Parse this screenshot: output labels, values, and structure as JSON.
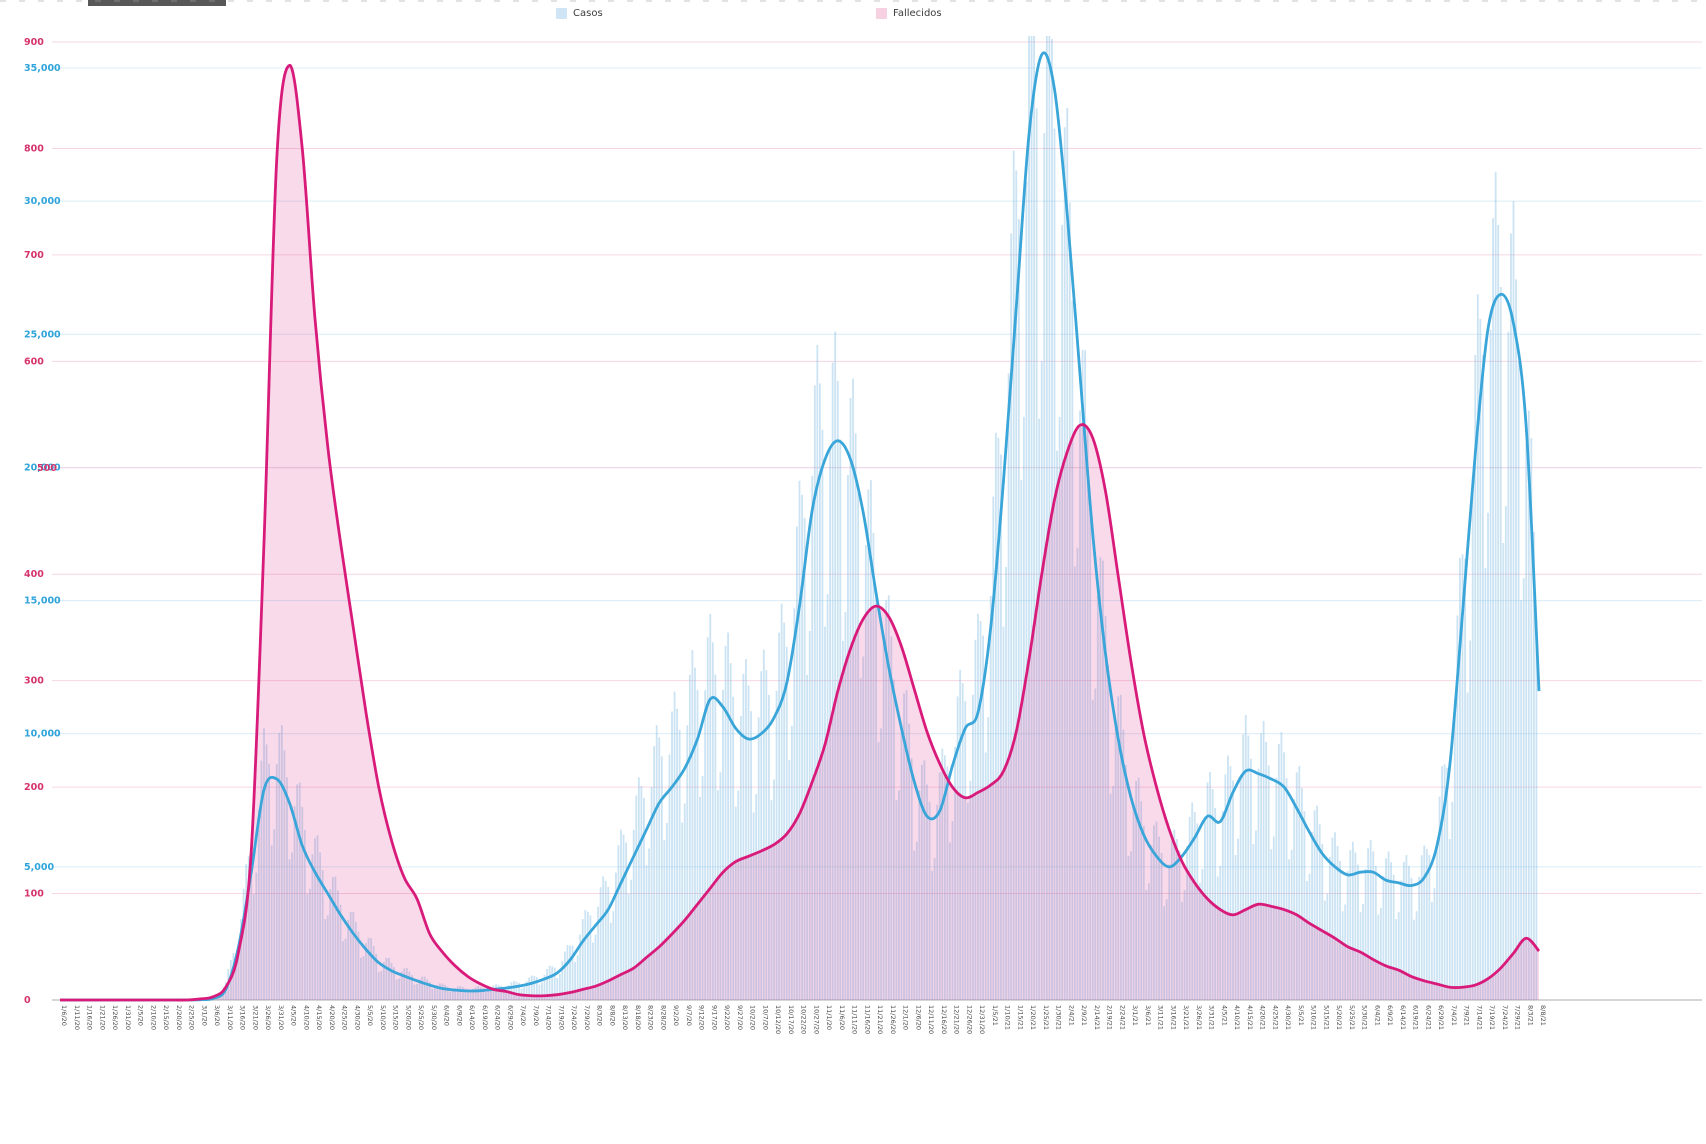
{
  "page": {
    "background": "#ffffff"
  },
  "legend": [
    {
      "label": "Casos",
      "swatch_color": "#cfe4f4"
    },
    {
      "label": "Fallecidos",
      "swatch_color": "#f7d0e1"
    }
  ],
  "chart_data": {
    "type": "line",
    "title": "",
    "legend_position": "top",
    "grid": true,
    "x_tick_rotation": 90,
    "x_labels": [
      "1/6/20",
      "1/11/20",
      "1/16/20",
      "1/21/20",
      "1/26/20",
      "1/31/20",
      "2/5/20",
      "2/10/20",
      "2/15/20",
      "2/20/20",
      "2/25/20",
      "3/1/20",
      "3/6/20",
      "3/11/20",
      "3/16/20",
      "3/21/20",
      "3/26/20",
      "3/31/20",
      "4/5/20",
      "4/10/20",
      "4/15/20",
      "4/20/20",
      "4/25/20",
      "4/30/20",
      "5/5/20",
      "5/10/20",
      "5/15/20",
      "5/20/20",
      "5/25/20",
      "5/30/20",
      "6/4/20",
      "6/9/20",
      "6/14/20",
      "6/19/20",
      "6/24/20",
      "6/29/20",
      "7/4/20",
      "7/9/20",
      "7/14/20",
      "7/19/20",
      "7/24/20",
      "7/29/20",
      "8/3/20",
      "8/8/20",
      "8/13/20",
      "8/18/20",
      "8/23/20",
      "8/28/20",
      "9/2/20",
      "9/7/20",
      "9/12/20",
      "9/17/20",
      "9/22/20",
      "9/27/20",
      "10/2/20",
      "10/7/20",
      "10/12/20",
      "10/17/20",
      "10/22/20",
      "10/27/20",
      "11/1/20",
      "11/6/20",
      "11/11/20",
      "11/16/20",
      "11/21/20",
      "11/26/20",
      "12/1/20",
      "12/6/20",
      "12/11/20",
      "12/16/20",
      "12/21/20",
      "12/26/20",
      "12/31/20",
      "1/5/21",
      "1/10/21",
      "1/15/21",
      "1/20/21",
      "1/25/21",
      "1/30/21",
      "2/4/21",
      "2/9/21",
      "2/14/21",
      "2/19/21",
      "2/24/21",
      "3/1/21",
      "3/6/21",
      "3/11/21",
      "3/16/21",
      "3/21/21",
      "3/26/21",
      "3/31/21",
      "4/5/21",
      "4/10/21",
      "4/15/21",
      "4/20/21",
      "4/25/21",
      "4/30/21",
      "5/5/21",
      "5/10/21",
      "5/15/21",
      "5/20/21",
      "5/25/21",
      "5/30/21",
      "6/4/21",
      "6/9/21",
      "6/14/21",
      "6/19/21",
      "6/24/21",
      "6/29/21",
      "7/4/21",
      "7/9/21",
      "7/14/21",
      "7/19/21",
      "7/24/21",
      "7/29/21",
      "8/3/21",
      "8/8/21"
    ],
    "series": [
      {
        "name": "Casos",
        "role": "cases_avg_line",
        "axis": "cases",
        "color": "#3aa5d8",
        "line_width": 2.8,
        "values": [
          0,
          0,
          0,
          0,
          0,
          0,
          0,
          0,
          0,
          0,
          2,
          10,
          60,
          400,
          2000,
          4800,
          7900,
          8300,
          7400,
          5800,
          4800,
          4000,
          3200,
          2500,
          1900,
          1400,
          1100,
          900,
          720,
          560,
          430,
          370,
          340,
          350,
          400,
          450,
          520,
          630,
          790,
          1020,
          1500,
          2200,
          2800,
          3400,
          4400,
          5400,
          6400,
          7400,
          8000,
          8700,
          9800,
          11300,
          11000,
          10200,
          9800,
          10000,
          10600,
          11900,
          14800,
          18400,
          20300,
          21000,
          20300,
          18300,
          15300,
          12500,
          10200,
          8200,
          6900,
          7100,
          8800,
          10200,
          10800,
          14000,
          19500,
          26000,
          32500,
          35500,
          34200,
          29500,
          23500,
          17500,
          13000,
          9800,
          7600,
          6200,
          5400,
          5000,
          5400,
          6100,
          6900,
          6700,
          7800,
          8600,
          8500,
          8300,
          8000,
          7200,
          6300,
          5500,
          5000,
          4700,
          4800,
          4800,
          4500,
          4400,
          4300,
          4600,
          5800,
          8800,
          14500,
          20500,
          25200,
          26500,
          25400,
          21500,
          11600
        ]
      },
      {
        "name": "Casos",
        "role": "cases_daily_bars",
        "axis": "cases",
        "color": "rgba(125,184,224,0.40)",
        "values": [
          0,
          0,
          0,
          0,
          0,
          0,
          0,
          0,
          0,
          0,
          5,
          25,
          120,
          700,
          3000,
          6500,
          10200,
          10800,
          9600,
          7800,
          6400,
          5300,
          4200,
          3300,
          2600,
          1900,
          1500,
          1250,
          1000,
          800,
          620,
          540,
          500,
          520,
          580,
          660,
          760,
          920,
          1150,
          1500,
          2200,
          3200,
          4100,
          5000,
          6400,
          7800,
          9200,
          10600,
          11400,
          12300,
          13700,
          14500,
          14200,
          13200,
          12700,
          13000,
          13800,
          15600,
          19500,
          24000,
          25500,
          25000,
          23800,
          21500,
          18200,
          15200,
          12600,
          10200,
          8700,
          9000,
          11200,
          13200,
          14500,
          18500,
          25500,
          33500,
          38500,
          40000,
          38500,
          33500,
          27000,
          20500,
          15500,
          12000,
          9300,
          7700,
          6700,
          6200,
          6700,
          7600,
          8600,
          8400,
          9700,
          10700,
          10600,
          10300,
          10000,
          9000,
          7900,
          6900,
          6300,
          5900,
          6000,
          6000,
          5600,
          5500,
          5400,
          5800,
          7300,
          11000,
          18000,
          25500,
          30500,
          31500,
          30000,
          25500,
          14500
        ]
      },
      {
        "name": "Fallecidos",
        "role": "deaths_avg_line",
        "axis": "deaths",
        "color": "#d81b7a",
        "line_width": 2.8,
        "fill": "rgba(216,27,122,0.16)",
        "values": [
          0,
          0,
          0,
          0,
          0,
          0,
          0,
          0,
          0,
          0,
          0,
          1,
          3,
          12,
          45,
          140,
          430,
          790,
          878,
          800,
          640,
          520,
          430,
          350,
          270,
          200,
          150,
          115,
          95,
          62,
          45,
          32,
          22,
          15,
          10,
          8,
          5,
          4,
          4,
          5,
          7,
          10,
          13,
          18,
          24,
          30,
          40,
          50,
          62,
          75,
          90,
          105,
          120,
          130,
          135,
          140,
          146,
          156,
          175,
          205,
          240,
          290,
          330,
          358,
          370,
          360,
          332,
          292,
          252,
          222,
          200,
          190,
          195,
          202,
          215,
          252,
          320,
          400,
          470,
          515,
          540,
          528,
          478,
          398,
          318,
          250,
          200,
          160,
          130,
          110,
          95,
          85,
          80,
          85,
          90,
          88,
          85,
          80,
          72,
          65,
          58,
          50,
          45,
          38,
          32,
          28,
          22,
          18,
          15,
          12,
          12,
          14,
          20,
          30,
          44,
          58,
          46
        ]
      }
    ],
    "axes": {
      "cases": {
        "side": "left",
        "color": "#2fa4db",
        "max": 35000,
        "tick_values": [
          5000,
          10000,
          15000,
          20000,
          25000,
          30000,
          35000
        ],
        "tick_labels": [
          "5,000",
          "10,000",
          "15,000",
          "20,000",
          "25,000",
          "30,000",
          "35,000"
        ],
        "grid_color": "#d9ecf8"
      },
      "deaths": {
        "side": "left",
        "color": "#d6336c",
        "max": 900,
        "tick_values": [
          0,
          100,
          200,
          300,
          400,
          500,
          600,
          700,
          800,
          900
        ],
        "tick_labels": [
          "0",
          "100",
          "200",
          "300",
          "400",
          "500",
          "600",
          "700",
          "800",
          "900"
        ],
        "grid_color": "#f6d6e3"
      }
    }
  }
}
